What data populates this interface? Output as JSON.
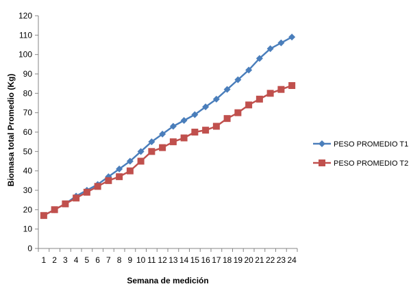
{
  "chart_data": {
    "type": "line",
    "title": "",
    "xlabel": "Semana de medición",
    "ylabel": "Biomasa total Promedio (Kg)",
    "ylim": [
      0,
      120
    ],
    "yticks": [
      0,
      10,
      20,
      30,
      40,
      50,
      60,
      70,
      80,
      90,
      100,
      110,
      120
    ],
    "categories": [
      "1",
      "2",
      "3",
      "4",
      "5",
      "6",
      "7",
      "8",
      "9",
      "10",
      "11",
      "12",
      "13",
      "14",
      "15",
      "16",
      "17",
      "18",
      "19",
      "20",
      "21",
      "22",
      "23",
      "24"
    ],
    "grid": false,
    "legend_position": "right",
    "series": [
      {
        "name": "PESO PROMEDIO T1",
        "color": "#4a7ebb",
        "marker": "diamond",
        "values": [
          17,
          20,
          23,
          27,
          30,
          33,
          37,
          41,
          45,
          50,
          55,
          59,
          63,
          66,
          69,
          73,
          77,
          82,
          87,
          92,
          98,
          103,
          106,
          109
        ]
      },
      {
        "name": "PESO PROMEDIO T2",
        "color": "#c0504d",
        "marker": "square",
        "values": [
          17,
          20,
          23,
          26,
          29,
          32,
          35,
          37,
          40,
          45,
          50,
          52,
          55,
          57,
          60,
          61,
          63,
          67,
          70,
          74,
          77,
          80,
          82,
          84
        ]
      }
    ]
  }
}
